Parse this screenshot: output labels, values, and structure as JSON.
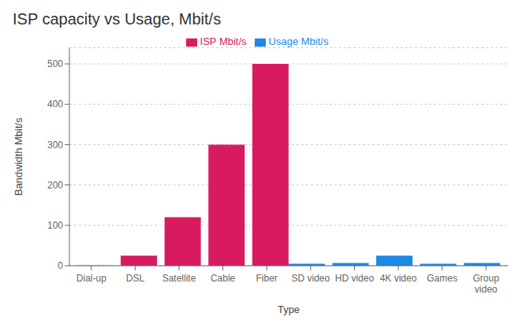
{
  "chart_data": {
    "type": "bar",
    "title": "ISP capacity vs Usage, Mbit/s",
    "xlabel": "Type",
    "ylabel": "Bandwidth Mbit/s",
    "categories": [
      "Dial-up",
      "DSL",
      "Satellite",
      "Cable",
      "Fiber",
      "SD video",
      "HD video",
      "4K video",
      "Games",
      "Group\nvideo"
    ],
    "series": [
      {
        "name": "ISP Mbit/s",
        "color": "#d81b60",
        "values": [
          0.5,
          25,
          120,
          300,
          500,
          null,
          null,
          null,
          null,
          null
        ]
      },
      {
        "name": "Usage Mbit/s",
        "color": "#1e88e5",
        "values": [
          null,
          null,
          null,
          null,
          null,
          5,
          7,
          25,
          5,
          7
        ]
      }
    ],
    "ylim": [
      0,
      540
    ],
    "yticks": [
      0,
      100,
      200,
      300,
      400,
      500
    ],
    "grid": true,
    "legend": "top"
  }
}
